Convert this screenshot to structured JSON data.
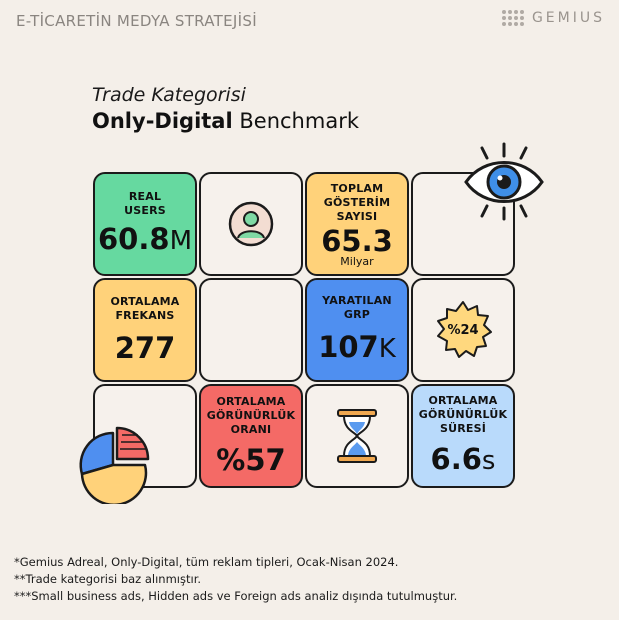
{
  "header": {
    "title": "E-TİCARETİN MEDYA STRATEJİSİ",
    "brand": "GEMIUS"
  },
  "heading": {
    "line1": "Trade Kategorisi",
    "line2_bold": "Only-Digital",
    "line2_rest": "Benchmark"
  },
  "tiles": {
    "real_users": {
      "label": "REAL USERS",
      "value": "60.8",
      "unit": "M"
    },
    "impressions": {
      "label": "TOPLAM GÖSTERİM SAYISI",
      "value": "65.3",
      "sub": "Milyar"
    },
    "frequency": {
      "label": "ORTALAMA FREKANS",
      "value": "277"
    },
    "grp": {
      "label": "YARATILAN GRP",
      "value": "107",
      "unit": "K"
    },
    "badge": {
      "value": "%24"
    },
    "visibility_rate": {
      "label": "ORTALAMA GÖRÜNÜRLÜK ORANI",
      "value": "%57"
    },
    "visibility_duration": {
      "label": "ORTALAMA GÖRÜNÜRLÜK SÜRESİ",
      "value": "6.6",
      "unit": "s"
    }
  },
  "footnotes": [
    "*Gemius Adreal, Only-Digital, tüm reklam tipleri, Ocak-Nisan 2024.",
    "**Trade kategorisi baz alınmıştır.",
    "***Small business ads, Hidden ads ve Foreign ads analiz dışında tutulmuştur."
  ],
  "icons": [
    "user-avatar-icon",
    "eye-icon",
    "badge-star-icon",
    "hourglass-icon",
    "pie-chart-icon"
  ],
  "colors": {
    "green": "#66d9a0",
    "yellow": "#ffd27a",
    "blue": "#4f8ff0",
    "red": "#f46a66",
    "lightblue": "#b9dafb"
  }
}
